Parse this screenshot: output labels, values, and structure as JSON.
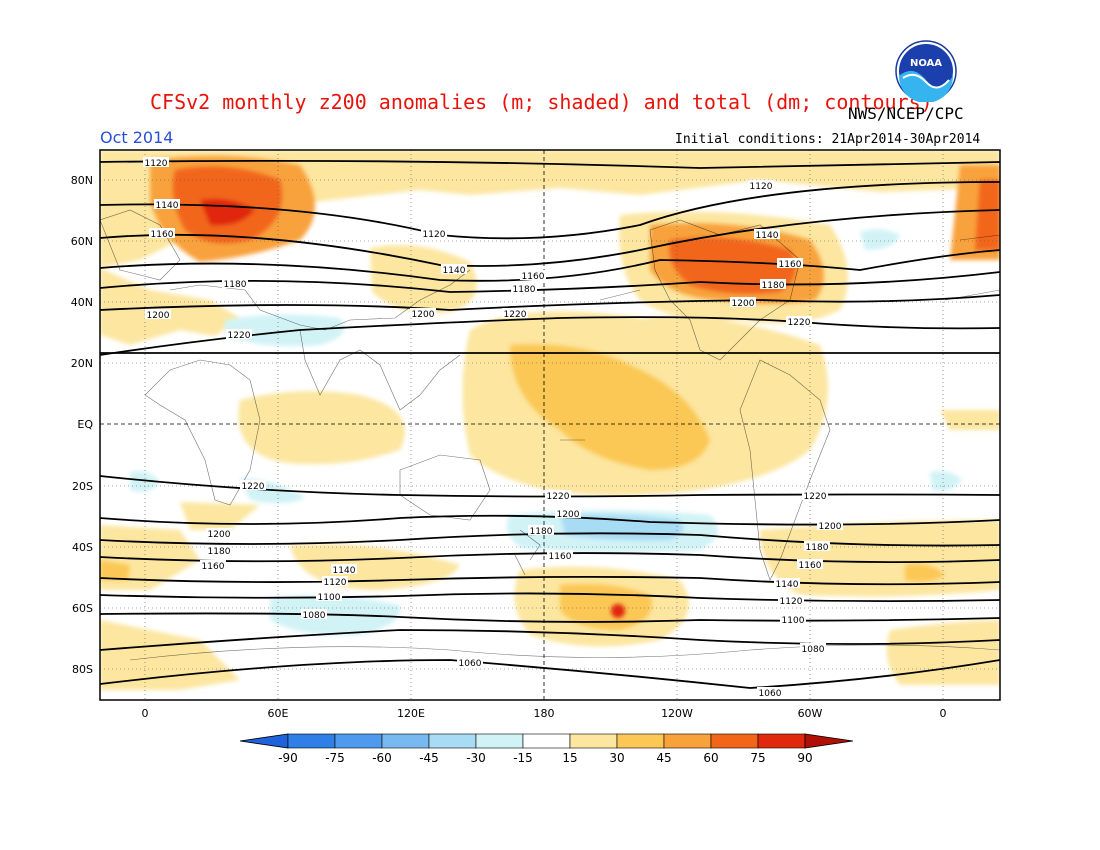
{
  "title": "CFSv2 monthly z200 anomalies (m; shaded) and total (dm; contours)",
  "agency": "NWS/NCEP/CPC",
  "month": "Oct 2014",
  "initial_conditions": "Initial conditions: 21Apr2014-30Apr2014",
  "logo_text": "NOAA",
  "lat_labels": [
    "80N",
    "60N",
    "40N",
    "20N",
    "EQ",
    "20S",
    "40S",
    "60S",
    "80S"
  ],
  "lon_labels": [
    "0",
    "60E",
    "120E",
    "180",
    "120W",
    "60W",
    "0"
  ],
  "colorbar": {
    "labels": [
      "-90",
      "-75",
      "-60",
      "-45",
      "-30",
      "-15",
      "15",
      "30",
      "45",
      "60",
      "75",
      "90"
    ],
    "colors": [
      "#1f63dc",
      "#2f7fe6",
      "#4f9aee",
      "#79b9f2",
      "#a8dcf4",
      "#d2f3f6",
      "#ffffff",
      "#fce6a0",
      "#fbc856",
      "#f8a23c",
      "#f2661a",
      "#e0280c",
      "#b01006"
    ]
  },
  "contour_labels": {
    "1060": "1060",
    "1080": "1080",
    "1100": "1100",
    "1120": "1120",
    "1140": "1140",
    "1160": "1160",
    "1180": "1180",
    "1200": "1200",
    "1220": "1220"
  }
}
